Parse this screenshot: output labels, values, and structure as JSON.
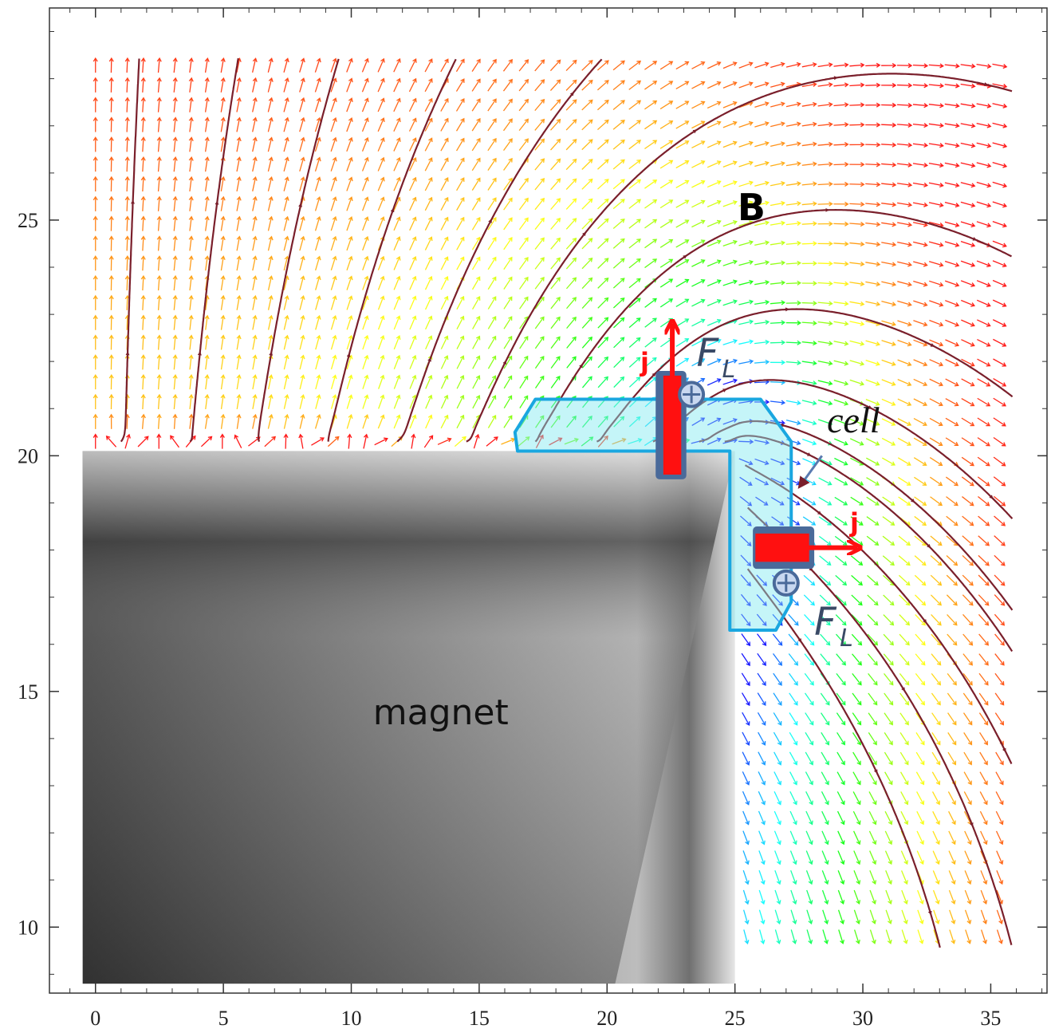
{
  "chart_data": {
    "type": "vector_field",
    "labels": {
      "field": "B",
      "magnet": "magnet",
      "cell": "cell",
      "current": [
        "j",
        "j"
      ],
      "force": [
        {
          "symbol": "F",
          "subscript": "L"
        },
        {
          "symbol": "F",
          "subscript": "L"
        }
      ]
    },
    "xlim": [
      -1.8,
      37.2
    ],
    "ylim": [
      8.6,
      29.5
    ],
    "xticks": [
      0,
      5,
      10,
      15,
      20,
      25,
      30,
      35
    ],
    "yticks": [
      10,
      15,
      20,
      25
    ],
    "grid": false,
    "streamline_color": "#7a1f2b",
    "cell_color": "#1aa7e0",
    "current_color": "#ff1010"
  }
}
